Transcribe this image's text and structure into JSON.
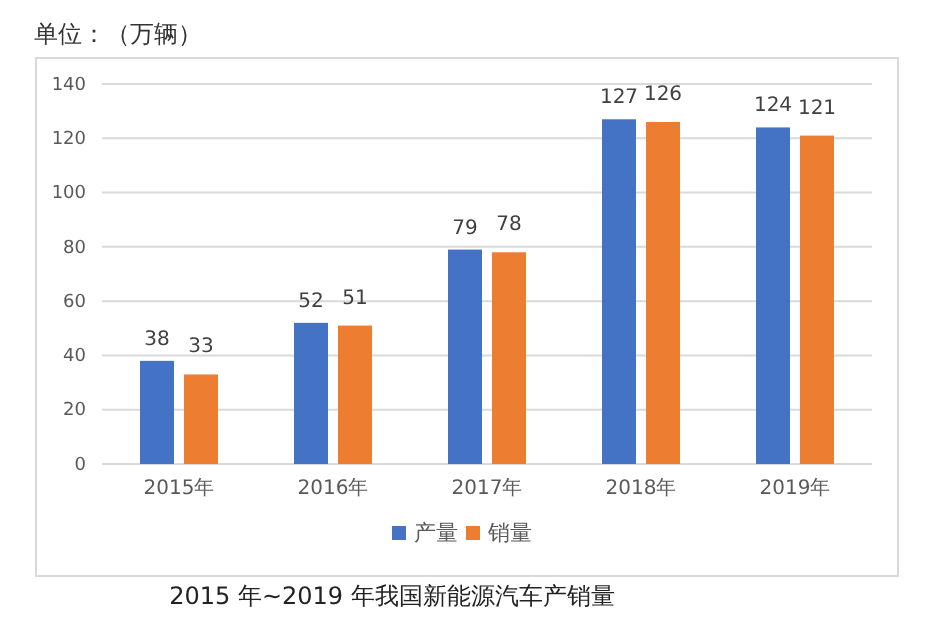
{
  "chart_data": {
    "type": "bar",
    "title": "2015 年~2019 年我国新能源汽车产销量",
    "ylabel": "单位：（万辆）",
    "categories": [
      "2015年",
      "2016年",
      "2017年",
      "2018年",
      "2019年"
    ],
    "series": [
      {
        "name": "产量",
        "color": "#4472c4",
        "values": [
          38,
          52,
          79,
          127,
          124
        ]
      },
      {
        "name": "销量",
        "color": "#ed7d31",
        "values": [
          33,
          51,
          78,
          126,
          121
        ]
      }
    ],
    "ylim": [
      0,
      140
    ],
    "yticks": [
      0,
      20,
      40,
      60,
      80,
      100,
      120,
      140
    ],
    "grid": "y",
    "legend": "bottom",
    "data_labels": true
  }
}
